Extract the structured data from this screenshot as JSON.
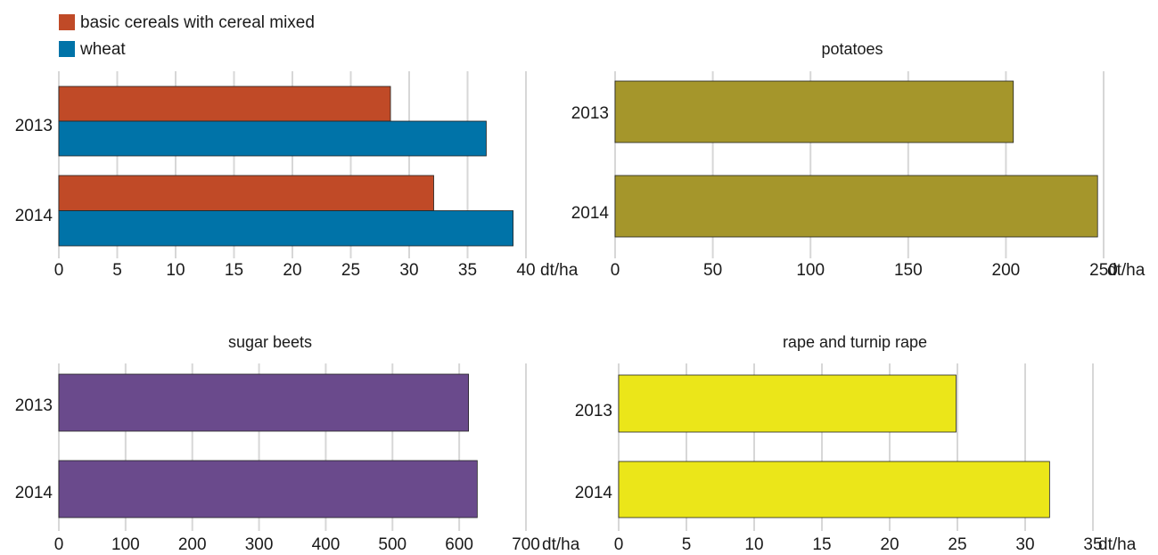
{
  "unit": "dt/ha",
  "legend": {
    "items": [
      {
        "label": "basic cereals with cereal mixed",
        "color": "#c04a27"
      },
      {
        "label": "wheat",
        "color": "#0073a8"
      }
    ]
  },
  "chart_data": [
    {
      "type": "bar",
      "orientation": "horizontal",
      "title": "",
      "categories": [
        "2013",
        "2014"
      ],
      "series": [
        {
          "name": "basic cereals with cereal mixed",
          "values": [
            28.4,
            32.1
          ],
          "color": "#c04a27"
        },
        {
          "name": "wheat",
          "values": [
            36.6,
            38.9
          ],
          "color": "#0073a8"
        }
      ],
      "xlim": [
        0,
        40
      ],
      "ticks": [
        0,
        5,
        10,
        15,
        20,
        25,
        30,
        35,
        40
      ],
      "xlabel": "dt/ha",
      "grid": true
    },
    {
      "type": "bar",
      "orientation": "horizontal",
      "title": "potatoes",
      "categories": [
        "2013",
        "2014"
      ],
      "series": [
        {
          "values": [
            203.8,
            246.9
          ],
          "color": "#a5962b"
        }
      ],
      "xlim": [
        0,
        250
      ],
      "ticks": [
        0,
        50,
        100,
        150,
        200,
        250
      ],
      "xlabel": "dt/ha",
      "grid": true
    },
    {
      "type": "bar",
      "orientation": "horizontal",
      "title": "sugar beets",
      "categories": [
        "2013",
        "2014"
      ],
      "series": [
        {
          "values": [
            614,
            627
          ],
          "color": "#6a4a8c"
        }
      ],
      "xlim": [
        0,
        700
      ],
      "ticks": [
        0,
        100,
        200,
        300,
        400,
        500,
        600,
        700
      ],
      "xlabel": "dt/ha",
      "grid": true
    },
    {
      "type": "bar",
      "orientation": "horizontal",
      "title": "rape and turnip rape",
      "categories": [
        "2013",
        "2014"
      ],
      "series": [
        {
          "values": [
            24.9,
            31.8
          ],
          "color": "#ebe619"
        }
      ],
      "xlim": [
        0,
        35
      ],
      "ticks": [
        0,
        5,
        10,
        15,
        20,
        25,
        30,
        35
      ],
      "xlabel": "dt/ha",
      "grid": true
    }
  ]
}
